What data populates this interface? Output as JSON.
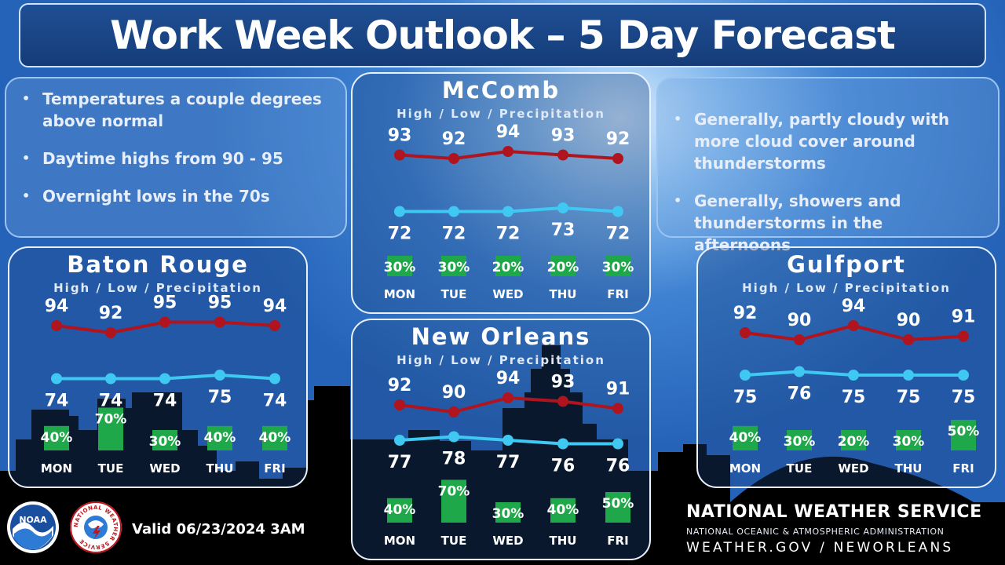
{
  "title": "Work Week Outlook – 5 Day Forecast",
  "colors": {
    "high_line": "#b0141e",
    "low_line": "#3ec8f2",
    "precip_bar": "#1fa84a"
  },
  "left_notes": [
    "Temperatures a couple degrees above normal",
    "Daytime highs from 90 - 95",
    "Overnight lows in the 70s"
  ],
  "right_notes": [
    "Generally, partly cloudy with more cloud cover around thunderstorms",
    "Generally, showers and thunderstorms in the afternoons"
  ],
  "days": [
    "MON",
    "TUE",
    "WED",
    "THU",
    "FRI"
  ],
  "subtitle": "High / Low / Precipitation",
  "cities": {
    "mccomb": {
      "name": "McComb",
      "highs": [
        93,
        92,
        94,
        93,
        92
      ],
      "lows": [
        72,
        72,
        72,
        73,
        72
      ],
      "precip": [
        "30%",
        "30%",
        "20%",
        "20%",
        "30%"
      ],
      "precip_values": [
        30,
        30,
        20,
        20,
        30
      ]
    },
    "baton_rouge": {
      "name": "Baton Rouge",
      "highs": [
        94,
        92,
        95,
        95,
        94
      ],
      "lows": [
        74,
        74,
        74,
        75,
        74
      ],
      "precip": [
        "40%",
        "70%",
        "30%",
        "40%",
        "40%"
      ],
      "precip_values": [
        40,
        70,
        30,
        40,
        40
      ]
    },
    "new_orleans": {
      "name": "New Orleans",
      "highs": [
        92,
        90,
        94,
        93,
        91
      ],
      "lows": [
        77,
        78,
        77,
        76,
        76
      ],
      "precip": [
        "40%",
        "70%",
        "30%",
        "40%",
        "50%"
      ],
      "precip_values": [
        40,
        70,
        30,
        40,
        50
      ]
    },
    "gulfport": {
      "name": "Gulfport",
      "highs": [
        92,
        90,
        94,
        90,
        91
      ],
      "lows": [
        75,
        76,
        75,
        75,
        75
      ],
      "precip": [
        "40%",
        "30%",
        "20%",
        "30%",
        "50%"
      ],
      "precip_values": [
        40,
        30,
        20,
        30,
        50
      ]
    }
  },
  "footer": {
    "valid": "Valid 06/23/2024 3AM",
    "agency": "NATIONAL WEATHER SERVICE",
    "parent": "NATIONAL OCEANIC & ATMOSPHERIC ADMINISTRATION",
    "website": "WEATHER.GOV / NEWORLEANS",
    "noaa_logo_text": "NOAA",
    "nws_logo_text": "NATIONAL WEATHER SERVICE"
  },
  "icons": {
    "noaa_logo": "noaa-logo-icon",
    "nws_logo": "nws-logo-icon"
  }
}
